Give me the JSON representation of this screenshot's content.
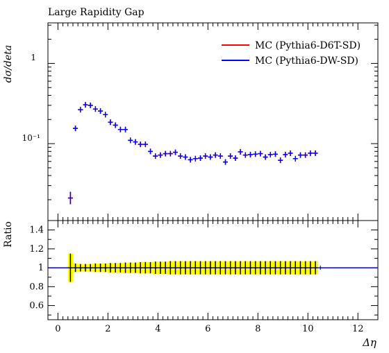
{
  "chart_data": [
    {
      "type": "scatter",
      "title": "Large Rapidity Gap",
      "ylabel": "dσ/deta",
      "xlabel": "Δη",
      "yscale": "log",
      "xlim": [
        -0.4,
        12.8
      ],
      "ylim": [
        0.011,
        3.2
      ],
      "ytick_labels": [
        "1",
        "10⁻¹"
      ],
      "ytick_values": [
        1,
        0.1
      ],
      "grid": false,
      "legend": "top-right",
      "series": [
        {
          "name": "MC (Pythia6-D6T-SD)",
          "color": "#ff0000",
          "x": [
            0.5,
            0.7,
            0.9,
            1.1,
            1.3,
            1.5,
            1.7,
            1.9,
            2.1,
            2.3,
            2.5,
            2.7,
            2.9,
            3.1,
            3.3,
            3.5,
            3.7,
            3.9,
            4.1,
            4.3,
            4.5,
            4.7,
            4.9,
            5.1,
            5.3,
            5.5,
            5.7,
            5.9,
            6.1,
            6.3,
            6.5,
            6.7,
            6.9,
            7.1,
            7.3,
            7.5,
            7.7,
            7.9,
            8.1,
            8.3,
            8.5,
            8.7,
            8.9,
            9.1,
            9.3,
            9.5,
            9.7,
            9.9,
            10.1,
            10.3
          ],
          "y": [
            0.021,
            0.155,
            0.265,
            0.305,
            0.3,
            0.27,
            0.255,
            0.23,
            0.185,
            0.17,
            0.15,
            0.15,
            0.11,
            0.105,
            0.098,
            0.098,
            0.08,
            0.07,
            0.072,
            0.075,
            0.075,
            0.078,
            0.07,
            0.068,
            0.063,
            0.065,
            0.066,
            0.07,
            0.068,
            0.072,
            0.07,
            0.059,
            0.07,
            0.066,
            0.079,
            0.072,
            0.073,
            0.074,
            0.075,
            0.068,
            0.073,
            0.074,
            0.062,
            0.073,
            0.076,
            0.065,
            0.072,
            0.072,
            0.076,
            0.076
          ]
        },
        {
          "name": "MC (Pythia6-DW-SD)",
          "color": "#0000ff",
          "x": [
            0.5,
            0.7,
            0.9,
            1.1,
            1.3,
            1.5,
            1.7,
            1.9,
            2.1,
            2.3,
            2.5,
            2.7,
            2.9,
            3.1,
            3.3,
            3.5,
            3.7,
            3.9,
            4.1,
            4.3,
            4.5,
            4.7,
            4.9,
            5.1,
            5.3,
            5.5,
            5.7,
            5.9,
            6.1,
            6.3,
            6.5,
            6.7,
            6.9,
            7.1,
            7.3,
            7.5,
            7.7,
            7.9,
            8.1,
            8.3,
            8.5,
            8.7,
            8.9,
            9.1,
            9.3,
            9.5,
            9.7,
            9.9,
            10.1,
            10.3
          ],
          "y": [
            0.021,
            0.155,
            0.265,
            0.305,
            0.3,
            0.27,
            0.255,
            0.23,
            0.185,
            0.17,
            0.15,
            0.15,
            0.11,
            0.105,
            0.098,
            0.098,
            0.08,
            0.07,
            0.072,
            0.075,
            0.075,
            0.078,
            0.07,
            0.068,
            0.063,
            0.065,
            0.066,
            0.07,
            0.068,
            0.072,
            0.07,
            0.059,
            0.07,
            0.066,
            0.079,
            0.072,
            0.073,
            0.074,
            0.075,
            0.068,
            0.073,
            0.074,
            0.062,
            0.073,
            0.076,
            0.065,
            0.072,
            0.072,
            0.076,
            0.076
          ]
        }
      ]
    },
    {
      "type": "scatter",
      "ylabel": "Ratio",
      "xlabel": "Δη",
      "xlim": [
        -0.4,
        12.8
      ],
      "ylim": [
        0.45,
        1.5
      ],
      "ytick_values": [
        0.6,
        0.8,
        1,
        1.2,
        1.4
      ],
      "xtick_values": [
        0,
        2,
        4,
        6,
        8,
        10,
        12
      ],
      "grid": false,
      "reference_line": 1,
      "band_color": "#ffff00",
      "points_x": [
        0.5,
        0.7,
        0.9,
        1.1,
        1.3,
        1.5,
        1.7,
        1.9,
        2.1,
        2.3,
        2.5,
        2.7,
        2.9,
        3.1,
        3.3,
        3.5,
        3.7,
        3.9,
        4.1,
        4.3,
        4.5,
        4.7,
        4.9,
        5.1,
        5.3,
        5.5,
        5.7,
        5.9,
        6.1,
        6.3,
        6.5,
        6.7,
        6.9,
        7.1,
        7.3,
        7.5,
        7.7,
        7.9,
        8.1,
        8.3,
        8.5,
        8.7,
        8.9,
        9.1,
        9.3,
        9.5,
        9.7,
        9.9,
        10.1,
        10.3
      ],
      "ratio_y": [
        1,
        1,
        1,
        1,
        1,
        1,
        1,
        1,
        1,
        1,
        1,
        1,
        1,
        1,
        1,
        1,
        1,
        1,
        1,
        1,
        1,
        1,
        1,
        1,
        1,
        1,
        1,
        1,
        1,
        1,
        1,
        1,
        1,
        1,
        1,
        1,
        1,
        1,
        1,
        1,
        1,
        1,
        1,
        1,
        1,
        1,
        1,
        1,
        1,
        1
      ],
      "band_halfwidth": [
        0.15,
        0.045,
        0.04,
        0.04,
        0.04,
        0.045,
        0.045,
        0.045,
        0.05,
        0.05,
        0.05,
        0.055,
        0.055,
        0.055,
        0.06,
        0.06,
        0.06,
        0.065,
        0.065,
        0.065,
        0.07,
        0.07,
        0.07,
        0.07,
        0.07,
        0.07,
        0.07,
        0.07,
        0.07,
        0.07,
        0.07,
        0.07,
        0.07,
        0.07,
        0.07,
        0.07,
        0.07,
        0.07,
        0.07,
        0.07,
        0.07,
        0.07,
        0.07,
        0.07,
        0.07,
        0.07,
        0.07,
        0.07,
        0.07,
        0.07
      ]
    }
  ]
}
